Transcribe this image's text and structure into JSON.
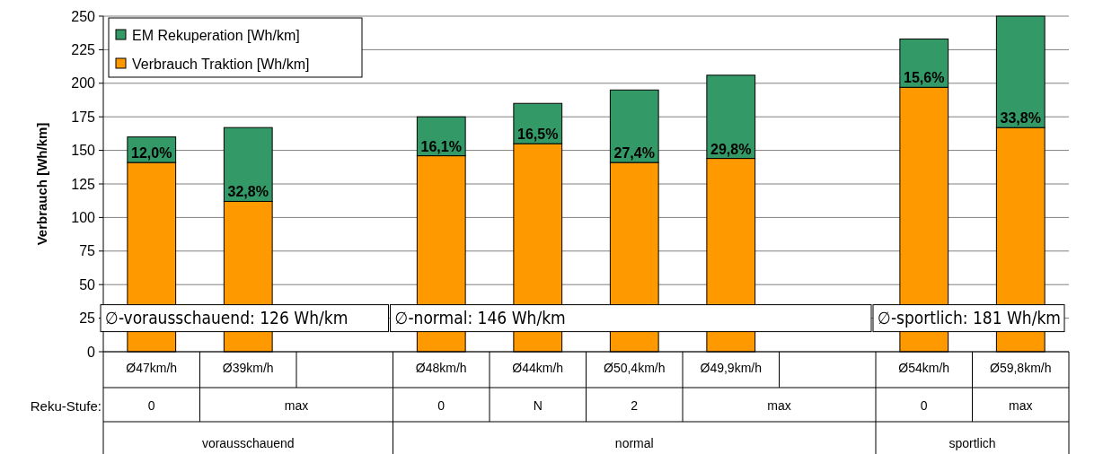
{
  "chart_data": {
    "type": "bar",
    "stacked": true,
    "ylabel": "Verbrauch [Wh/km]",
    "categories": [
      "Ø47km/h",
      "Ø39km/h",
      null,
      "Ø48km/h",
      "Ø44km/h",
      "Ø50,4km/h",
      "Ø49,9km/h",
      null,
      "Ø54km/h",
      "Ø59,8km/h"
    ],
    "series": [
      {
        "name": "Verbrauch Traktion [Wh/km]",
        "color": "#ff9900",
        "values": [
          141,
          112,
          null,
          146,
          155,
          141,
          144,
          null,
          197,
          167
        ]
      },
      {
        "name": "EM Rekuperation [Wh/km]",
        "color": "#339966",
        "values": [
          19,
          55,
          null,
          29,
          30,
          54,
          62,
          null,
          36,
          83
        ]
      }
    ],
    "ylim": [
      0,
      250
    ],
    "yticks": [
      0,
      25,
      50,
      75,
      100,
      125,
      150,
      175,
      200,
      225,
      250
    ],
    "grid": "y",
    "legend": "top left",
    "annotations": [
      "∅-vorausschauend: 126 Wh/km",
      "∅-normal: 146 Wh/km",
      "∅-sportlich: 181 Wh/km",
      "Reku-Stufe:",
      "0",
      "max",
      "0",
      "N",
      "2",
      "max",
      "0",
      "max",
      "vorausschauend",
      "normal",
      "sportlich",
      {
        "text": "12,0%",
        "x": "Ø47km/h",
        "y": 141
      },
      {
        "text": "32,8%",
        "x": "Ø39km/h",
        "y": 112
      },
      {
        "text": "16,1%",
        "x": "Ø48km/h",
        "y": 146
      },
      {
        "text": "16,5%",
        "x": "Ø44km/h",
        "y": 155
      },
      {
        "text": "27,4%",
        "x": "Ø50,4km/h",
        "y": 141
      },
      {
        "text": "29,8%",
        "x": "Ø49,9km/h",
        "y": 144
      },
      {
        "text": "15,6%",
        "x": "Ø54km/h",
        "y": 197
      },
      {
        "text": "33,8%",
        "x": "Ø59,8km/h",
        "y": 167
      }
    ]
  }
}
